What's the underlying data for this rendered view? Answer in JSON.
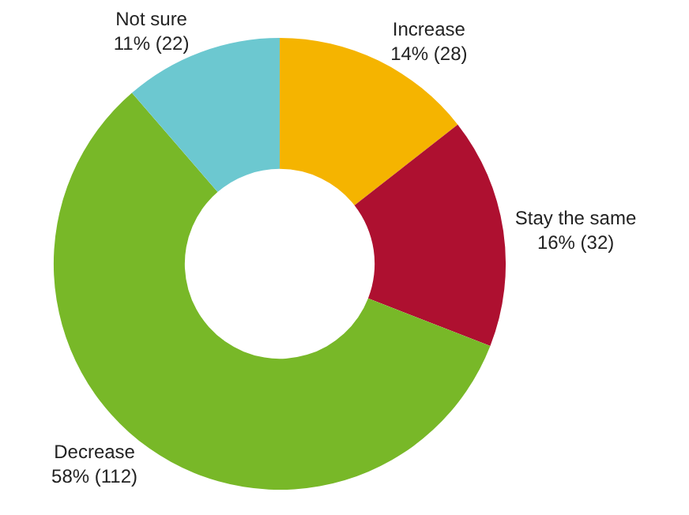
{
  "chart_data": {
    "type": "donut",
    "categories": [
      "Increase",
      "Stay the same",
      "Decrease",
      "Not sure"
    ],
    "values": [
      28,
      32,
      112,
      22
    ],
    "value_labels": [
      "14% (28)",
      "16% (32)",
      "58% (112)",
      "11% (22)"
    ],
    "colors": [
      "#f5b400",
      "#ae1030",
      "#78b828",
      "#6cc8d0"
    ],
    "legend": false
  }
}
